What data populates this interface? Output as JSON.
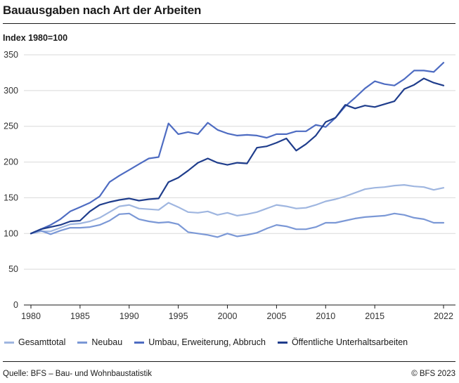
{
  "header": {
    "title": "Bauausgaben nach Art der Arbeiten",
    "unit": "Index 1980=100"
  },
  "footer": {
    "source": "Quelle: BFS – Bau- und Wohnbaustatistik",
    "copyright": "© BFS 2023"
  },
  "chart_data": {
    "type": "line",
    "title": "Bauausgaben nach Art der Arbeiten",
    "ylabel": "Index 1980=100",
    "xlabel": "",
    "xlim": [
      1980,
      2022
    ],
    "ylim": [
      0,
      350
    ],
    "yticks": [
      0,
      50,
      100,
      150,
      200,
      250,
      300,
      350
    ],
    "xticks": [
      1980,
      1985,
      1990,
      1995,
      2000,
      2005,
      2010,
      2015,
      2022
    ],
    "grid": "horizontal",
    "legend_position": "bottom",
    "x": [
      1980,
      1981,
      1982,
      1983,
      1984,
      1985,
      1986,
      1987,
      1988,
      1989,
      1990,
      1991,
      1992,
      1993,
      1994,
      1995,
      1996,
      1997,
      1998,
      1999,
      2000,
      2001,
      2002,
      2003,
      2004,
      2005,
      2006,
      2007,
      2008,
      2009,
      2010,
      2011,
      2012,
      2013,
      2014,
      2015,
      2016,
      2017,
      2018,
      2019,
      2020,
      2021,
      2022
    ],
    "series": [
      {
        "name": "Gesamttotal",
        "color": "#9fb6e0",
        "values": [
          100,
          103,
          103,
          108,
          113,
          114,
          117,
          122,
          130,
          138,
          140,
          135,
          134,
          133,
          143,
          137,
          130,
          129,
          131,
          126,
          129,
          125,
          127,
          130,
          135,
          140,
          138,
          135,
          136,
          140,
          145,
          148,
          152,
          157,
          162,
          164,
          165,
          167,
          168,
          166,
          165,
          161,
          164
        ]
      },
      {
        "name": "Neubau",
        "color": "#7b98d6",
        "values": [
          100,
          104,
          99,
          104,
          108,
          108,
          109,
          112,
          118,
          127,
          128,
          120,
          117,
          115,
          116,
          113,
          102,
          100,
          98,
          95,
          100,
          96,
          98,
          101,
          107,
          112,
          110,
          106,
          106,
          109,
          115,
          115,
          118,
          121,
          123,
          124,
          125,
          128,
          126,
          122,
          120,
          115,
          115
        ]
      },
      {
        "name": "Umbau, Erweiterung, Abbruch",
        "color": "#4e6cc2",
        "values": [
          100,
          106,
          112,
          120,
          131,
          137,
          143,
          152,
          172,
          181,
          189,
          197,
          205,
          207,
          254,
          239,
          242,
          239,
          255,
          245,
          240,
          237,
          238,
          237,
          234,
          239,
          239,
          243,
          243,
          252,
          249,
          262,
          278,
          290,
          303,
          313,
          309,
          307,
          316,
          328,
          328,
          326,
          339
        ]
      },
      {
        "name": "Öffentliche Unterhaltsarbeiten",
        "color": "#1f3d8c",
        "values": [
          100,
          106,
          109,
          112,
          117,
          118,
          131,
          140,
          144,
          147,
          149,
          146,
          148,
          149,
          172,
          178,
          188,
          199,
          205,
          199,
          196,
          199,
          198,
          220,
          222,
          227,
          233,
          216,
          225,
          237,
          256,
          262,
          280,
          275,
          279,
          277,
          281,
          285,
          302,
          308,
          317,
          311,
          307
        ]
      }
    ]
  }
}
